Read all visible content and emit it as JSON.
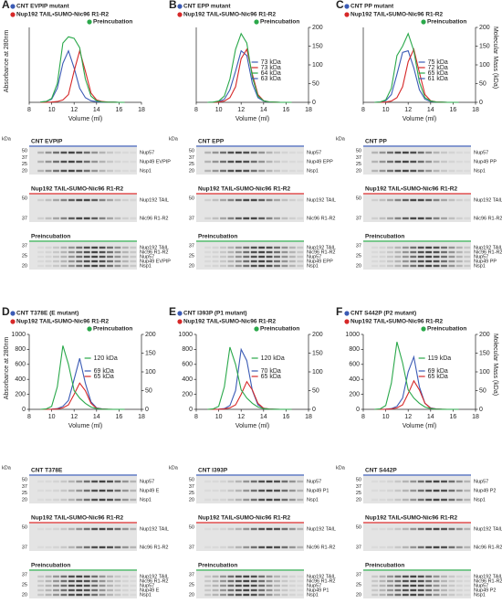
{
  "chart_data": [
    {
      "type": "line",
      "letter": "A",
      "ylabel": "Absorbance at 280nm",
      "xlabel": "Volume (ml)",
      "x": [
        9,
        9.5,
        10,
        10.5,
        11,
        11.5,
        12,
        12.5,
        13,
        13.5,
        14,
        14.5,
        15,
        15.5,
        16,
        16.5
      ],
      "xlim": [
        8,
        18
      ],
      "xticks": [
        8,
        10,
        12,
        14,
        16,
        18
      ],
      "ylim": [
        0,
        480
      ],
      "series": [
        {
          "name": "CNT EVPIP mutant",
          "color": "#3b5bb5",
          "values": [
            2,
            5,
            20,
            90,
            250,
            330,
            220,
            90,
            30,
            10,
            4,
            2,
            1,
            1,
            0,
            0
          ]
        },
        {
          "name": "Nup192 TAIL•SUMO-Nic96 R1-R2",
          "color": "#d62828",
          "values": [
            0,
            1,
            2,
            5,
            15,
            50,
            200,
            330,
            200,
            60,
            15,
            5,
            2,
            1,
            0,
            0
          ]
        },
        {
          "name": "Preincubation",
          "color": "#2aa84a",
          "values": [
            2,
            5,
            25,
            120,
            380,
            420,
            410,
            350,
            150,
            40,
            10,
            3,
            1,
            1,
            0,
            0
          ]
        }
      ],
      "annotations": []
    },
    {
      "type": "line",
      "letter": "B",
      "xlabel": "Volume (ml)",
      "x": [
        9,
        9.5,
        10,
        10.5,
        11,
        11.5,
        12,
        12.5,
        13,
        13.5,
        14,
        14.5,
        15,
        15.5,
        16,
        16.5
      ],
      "xlim": [
        8,
        18
      ],
      "xticks": [
        8,
        10,
        12,
        14,
        16,
        18
      ],
      "ylim": [
        0,
        480
      ],
      "y2lim": [
        0,
        200
      ],
      "y2ticks": [
        0,
        50,
        100,
        150,
        200
      ],
      "series": [
        {
          "name": "CNT EPP mutant",
          "color": "#3b5bb5",
          "values": [
            0,
            1,
            5,
            20,
            80,
            200,
            330,
            300,
            120,
            30,
            8,
            2,
            1,
            0,
            0,
            0
          ]
        },
        {
          "name": "Nup192 TAIL•SUMO-Nic96 R1-R2",
          "color": "#d62828",
          "values": [
            0,
            0,
            2,
            8,
            30,
            100,
            280,
            340,
            180,
            50,
            10,
            3,
            1,
            0,
            0,
            0
          ]
        },
        {
          "name": "Preincubation",
          "color": "#2aa84a",
          "values": [
            0,
            1,
            8,
            40,
            150,
            340,
            440,
            380,
            160,
            40,
            10,
            3,
            1,
            0,
            0,
            0
          ]
        }
      ],
      "annotations": [
        "73 kDa",
        "73 kDa",
        "64 kDa",
        "63 kDa"
      ]
    },
    {
      "type": "line",
      "letter": "C",
      "y2label": "Molecular Mass (kDa)",
      "xlabel": "Volume (ml)",
      "x": [
        9,
        9.5,
        10,
        10.5,
        11,
        11.5,
        12,
        12.5,
        13,
        13.5,
        14,
        14.5,
        15,
        15.5,
        16,
        16.5
      ],
      "xlim": [
        8,
        18
      ],
      "xticks": [
        8,
        10,
        12,
        14,
        16,
        18
      ],
      "ylim": [
        0,
        480
      ],
      "y2lim": [
        0,
        200
      ],
      "y2ticks": [
        0,
        50,
        100,
        150,
        200
      ],
      "series": [
        {
          "name": "CNT PP mutant",
          "color": "#3b5bb5",
          "values": [
            0,
            2,
            10,
            50,
            180,
            320,
            330,
            220,
            80,
            20,
            5,
            2,
            1,
            0,
            0,
            0
          ]
        },
        {
          "name": "Nup192 TAIL•SUMO-Nic96 R1-R2",
          "color": "#d62828",
          "values": [
            0,
            0,
            2,
            8,
            30,
            100,
            260,
            340,
            190,
            50,
            10,
            3,
            1,
            0,
            0,
            0
          ]
        },
        {
          "name": "Preincubation",
          "color": "#2aa84a",
          "values": [
            0,
            2,
            15,
            90,
            300,
            360,
            440,
            330,
            130,
            30,
            8,
            2,
            1,
            0,
            0,
            0
          ]
        }
      ],
      "annotations": [
        "75 kDa",
        "72 kDa",
        "65 kDa",
        "61 kDa"
      ]
    },
    {
      "type": "line",
      "letter": "D",
      "ylabel": "Absorbance at 280nm",
      "xlabel": "Volume (ml)",
      "x": [
        9,
        9.5,
        10,
        10.5,
        11,
        11.5,
        12,
        12.5,
        13,
        13.5,
        14,
        14.5,
        15,
        15.5,
        16,
        16.5
      ],
      "xlim": [
        8,
        18
      ],
      "xticks": [
        8,
        10,
        12,
        14,
        16,
        18
      ],
      "ylim": [
        0,
        1000
      ],
      "yticks": [
        0,
        200,
        400,
        600,
        800,
        1000
      ],
      "y2lim": [
        0,
        200
      ],
      "y2ticks": [
        0,
        50,
        100,
        150,
        200
      ],
      "series": [
        {
          "name": "CNT T378E (E mutant)",
          "color": "#3b5bb5",
          "values": [
            0,
            0,
            2,
            10,
            40,
            120,
            400,
            680,
            350,
            100,
            20,
            5,
            1,
            0,
            0,
            0
          ]
        },
        {
          "name": "Nup192 TAIL•SUMO-Nic96 R1-R2",
          "color": "#d62828",
          "values": [
            0,
            0,
            1,
            5,
            20,
            60,
            200,
            350,
            250,
            80,
            15,
            4,
            1,
            0,
            0,
            0
          ]
        },
        {
          "name": "Preincubation",
          "color": "#2aa84a",
          "values": [
            0,
            5,
            40,
            300,
            850,
            600,
            250,
            150,
            80,
            30,
            10,
            3,
            1,
            0,
            0,
            0
          ]
        }
      ],
      "annotations": [
        "120 kDa",
        "69 kDa",
        "65 kDa"
      ]
    },
    {
      "type": "line",
      "letter": "E",
      "xlabel": "Volume (ml)",
      "x": [
        9,
        9.5,
        10,
        10.5,
        11,
        11.5,
        12,
        12.5,
        13,
        13.5,
        14,
        14.5,
        15,
        15.5,
        16,
        16.5
      ],
      "xlim": [
        8,
        18
      ],
      "xticks": [
        8,
        10,
        12,
        14,
        16,
        18
      ],
      "ylim": [
        0,
        1000
      ],
      "yticks": [
        0,
        200,
        400,
        600,
        800,
        1000
      ],
      "y2lim": [
        0,
        200
      ],
      "y2ticks": [
        0,
        50,
        100,
        150,
        200
      ],
      "series": [
        {
          "name": "CNT I393P (P1 mutant)",
          "color": "#3b5bb5",
          "values": [
            0,
            0,
            2,
            10,
            50,
            250,
            800,
            650,
            250,
            60,
            15,
            4,
            1,
            0,
            0,
            0
          ]
        },
        {
          "name": "Nup192 TAIL•SUMO-Nic96 R1-R2",
          "color": "#d62828",
          "values": [
            0,
            0,
            1,
            5,
            20,
            60,
            200,
            370,
            260,
            80,
            15,
            4,
            1,
            0,
            0,
            0
          ]
        },
        {
          "name": "Preincubation",
          "color": "#2aa84a",
          "values": [
            0,
            5,
            40,
            300,
            830,
            600,
            260,
            150,
            80,
            30,
            10,
            3,
            1,
            0,
            0,
            0
          ]
        }
      ],
      "annotations": [
        "120 kDa",
        "70 kDa",
        "65 kDa"
      ]
    },
    {
      "type": "line",
      "letter": "F",
      "y2label": "Molecular Mass (kDa)",
      "xlabel": "Volume (ml)",
      "x": [
        9,
        9.5,
        10,
        10.5,
        11,
        11.5,
        12,
        12.5,
        13,
        13.5,
        14,
        14.5,
        15,
        15.5,
        16,
        16.5
      ],
      "xlim": [
        8,
        18
      ],
      "xticks": [
        8,
        10,
        12,
        14,
        16,
        18
      ],
      "ylim": [
        0,
        1000
      ],
      "yticks": [
        0,
        200,
        400,
        600,
        800,
        1000
      ],
      "y2lim": [
        0,
        200
      ],
      "y2ticks": [
        0,
        50,
        100,
        150,
        200
      ],
      "series": [
        {
          "name": "CNT S442P (P2 mutant)",
          "color": "#3b5bb5",
          "values": [
            0,
            0,
            2,
            10,
            40,
            150,
            500,
            700,
            300,
            80,
            20,
            5,
            1,
            0,
            0,
            0
          ]
        },
        {
          "name": "Nup192 TAIL•SUMO-Nic96 R1-R2",
          "color": "#d62828",
          "values": [
            0,
            0,
            1,
            5,
            20,
            60,
            210,
            380,
            260,
            80,
            15,
            4,
            1,
            0,
            0,
            0
          ]
        },
        {
          "name": "Preincubation",
          "color": "#2aa84a",
          "values": [
            0,
            5,
            50,
            350,
            900,
            620,
            260,
            150,
            80,
            30,
            10,
            3,
            1,
            0,
            0,
            0
          ]
        }
      ],
      "annotations": [
        "119 kDa",
        "69 kDa",
        "65 kDa"
      ]
    }
  ],
  "gel_unit": "kDa",
  "gels": [
    [
      {
        "title": "CNT EVPIP",
        "color": "#3b5bb5",
        "kda": [
          "50",
          "37",
          "25",
          "20"
        ],
        "bands": [
          "Nup57",
          "Nup49 EVPIP",
          "Nsp1"
        ]
      },
      {
        "title": "Nup192 TAIL•SUMO-Nic96 R1-R2",
        "color": "#d62828",
        "kda": [
          "50",
          "37"
        ],
        "bands": [
          "Nup192 TAIL",
          "Nic96 R1-R2"
        ]
      },
      {
        "title": "Preincubation",
        "color": "#2aa84a",
        "kda": [
          "37",
          "25",
          "20"
        ],
        "bands": [
          "Nup192 TAIL",
          "Nic96 R1-R2",
          "Nup57",
          "Nup49 EVPIP",
          "Nsp1"
        ]
      }
    ],
    [
      {
        "title": "CNT EPP",
        "color": "#3b5bb5",
        "kda": [
          "50",
          "37",
          "25",
          "20"
        ],
        "bands": [
          "Nup57",
          "Nup49 EPP",
          "Nsp1"
        ]
      },
      {
        "title": "Nup192 TAIL•SUMO-Nic96 R1-R2",
        "color": "#d62828",
        "kda": [
          "50",
          "37"
        ],
        "bands": [
          "Nup192 TAIL",
          "Nic96 R1-R2"
        ]
      },
      {
        "title": "Preincubation",
        "color": "#2aa84a",
        "kda": [
          "37",
          "25",
          "20"
        ],
        "bands": [
          "Nup192 TAIL",
          "Nic96 R1-R2",
          "Nup57",
          "Nup49 EPP",
          "Nsp1"
        ]
      }
    ],
    [
      {
        "title": "CNT PP",
        "color": "#3b5bb5",
        "kda": [
          "50",
          "37",
          "25",
          "20"
        ],
        "bands": [
          "Nup57",
          "Nup49 PP",
          "Nsp1"
        ]
      },
      {
        "title": "Nup192 TAIL•SUMO-Nic96 R1-R2",
        "color": "#d62828",
        "kda": [
          "50",
          "37"
        ],
        "bands": [
          "Nup192 TAIL",
          "Nic96 R1-R2"
        ]
      },
      {
        "title": "Preincubation",
        "color": "#2aa84a",
        "kda": [
          "37",
          "25",
          "20"
        ],
        "bands": [
          "Nup192 TAIL",
          "Nic96 R1-R2",
          "Nup57",
          "Nup49 PP",
          "Nsp1"
        ]
      }
    ],
    [
      {
        "title": "CNT T378E",
        "color": "#3b5bb5",
        "kda": [
          "50",
          "37",
          "25",
          "20"
        ],
        "bands": [
          "Nup57",
          "Nup49 E",
          "Nsp1"
        ]
      },
      {
        "title": "Nup192 TAIL•SUMO-Nic96 R1-R2",
        "color": "#d62828",
        "kda": [
          "50",
          "37"
        ],
        "bands": [
          "Nup192 TAIL",
          "Nic96 R1-R2"
        ]
      },
      {
        "title": "Preincubation",
        "color": "#2aa84a",
        "kda": [
          "37",
          "25",
          "20"
        ],
        "bands": [
          "Nup192 TAIL",
          "Nic96 R1-R2",
          "Nup57",
          "Nup49 E",
          "Nsp1"
        ]
      }
    ],
    [
      {
        "title": "CNT I393P",
        "color": "#3b5bb5",
        "kda": [
          "50",
          "37",
          "25",
          "20"
        ],
        "bands": [
          "Nup57",
          "Nup49 P1",
          "Nsp1"
        ]
      },
      {
        "title": "Nup192 TAIL•SUMO-Nic96 R1-R2",
        "color": "#d62828",
        "kda": [
          "50",
          "37"
        ],
        "bands": [
          "Nup192 TAIL",
          "Nic96 R1-R2"
        ]
      },
      {
        "title": "Preincubation",
        "color": "#2aa84a",
        "kda": [
          "37",
          "25",
          "20"
        ],
        "bands": [
          "Nup192 TAIL",
          "Nic96 R1-R2",
          "Nup57",
          "Nup49 P1",
          "Nsp1"
        ]
      }
    ],
    [
      {
        "title": "CNT S442P",
        "color": "#3b5bb5",
        "kda": [
          "50",
          "37",
          "25",
          "20"
        ],
        "bands": [
          "Nup57",
          "Nup49 P2",
          "Nsp1"
        ]
      },
      {
        "title": "Nup192 TAIL•SUMO-Nic96 R1-R2",
        "color": "#d62828",
        "kda": [
          "50",
          "37"
        ],
        "bands": [
          "Nup192 TAIL",
          "Nic96 R1-R2"
        ]
      },
      {
        "title": "Preincubation",
        "color": "#2aa84a",
        "kda": [
          "37",
          "25",
          "20"
        ],
        "bands": [
          "Nup192 TAIL",
          "Nic96 R1-R2",
          "Nup57",
          "Nup49 P2",
          "Nsp1"
        ]
      }
    ]
  ]
}
